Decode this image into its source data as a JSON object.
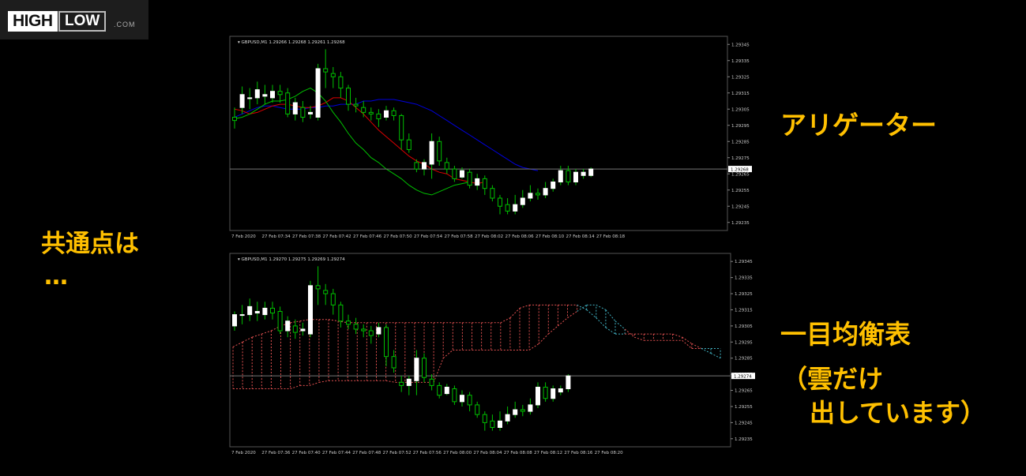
{
  "logo": {
    "high": "HIGH",
    "low": "LOW",
    "com": ".COM"
  },
  "annotations": {
    "common": "共通点は",
    "ellipsis": "…",
    "alligator": "アリゲーター",
    "ichimoku": "一目均衡表",
    "paren_line1": "（雲だけ",
    "paren_line2": "出しています）"
  },
  "colors": {
    "accent": "#ffc000",
    "bull": "#ffffff",
    "bear_border": "#00c000",
    "jaw": "#0000dd",
    "teeth": "#dd0000",
    "lips": "#00c000",
    "cloud_up": "#e05050",
    "cloud_down": "#40b0c0"
  },
  "chart_data": [
    {
      "type": "candlestick",
      "title": "GBPUSD,M1  1.29266 1.29268 1.29261 1.29268",
      "indicator": "Alligator",
      "ylim": [
        1.2923,
        1.2935
      ],
      "yticks": [
        "1.29345",
        "1.29335",
        "1.29325",
        "1.29315",
        "1.29305",
        "1.29295",
        "1.29285",
        "1.29275",
        "1.29265",
        "1.29255",
        "1.29245",
        "1.29235"
      ],
      "current_price": "1.29268",
      "xticks": [
        "7 Feb 2020",
        "27 Feb 07:34",
        "27 Feb 07:38",
        "27 Feb 07:42",
        "27 Feb 07:46",
        "27 Feb 07:50",
        "27 Feb 07:54",
        "27 Feb 07:58",
        "27 Feb 08:02",
        "27 Feb 08:06",
        "27 Feb 08:10",
        "27 Feb 08:14",
        "27 Feb 08:18"
      ],
      "candles": [
        [
          1.293,
          1.29298,
          1.29306,
          1.29293
        ],
        [
          1.29306,
          1.29314,
          1.29319,
          1.29302
        ],
        [
          1.29312,
          1.29312,
          1.29318,
          1.29305
        ],
        [
          1.29312,
          1.29317,
          1.29322,
          1.29308
        ],
        [
          1.29313,
          1.29314,
          1.2932,
          1.29308
        ],
        [
          1.29312,
          1.29316,
          1.2932,
          1.29309
        ],
        [
          1.29316,
          1.29314,
          1.2932,
          1.29309
        ],
        [
          1.29315,
          1.29302,
          1.29318,
          1.293
        ],
        [
          1.29302,
          1.29309,
          1.29312,
          1.29298
        ],
        [
          1.29306,
          1.293,
          1.2931,
          1.29297
        ],
        [
          1.29302,
          1.29303,
          1.29307,
          1.29299
        ],
        [
          1.293,
          1.2933,
          1.29333,
          1.29298
        ],
        [
          1.2933,
          1.29328,
          1.29342,
          1.29318
        ],
        [
          1.29327,
          1.29325,
          1.29331,
          1.29318
        ],
        [
          1.29325,
          1.29318,
          1.29328,
          1.29312
        ],
        [
          1.29318,
          1.29308,
          1.2932,
          1.29304
        ],
        [
          1.29308,
          1.29307,
          1.29312,
          1.29303
        ],
        [
          1.29306,
          1.29303,
          1.2931,
          1.293
        ],
        [
          1.29303,
          1.29302,
          1.29306,
          1.29298
        ],
        [
          1.29302,
          1.29299,
          1.29305,
          1.29294
        ],
        [
          1.293,
          1.29304,
          1.29307,
          1.29298
        ],
        [
          1.29304,
          1.29301,
          1.29306,
          1.29298
        ],
        [
          1.29301,
          1.29286,
          1.29302,
          1.2928
        ],
        [
          1.29286,
          1.2928,
          1.2929,
          1.29278
        ],
        [
          1.29272,
          1.29268,
          1.29274,
          1.29266
        ],
        [
          1.29268,
          1.29272,
          1.29274,
          1.29264
        ],
        [
          1.29271,
          1.29285,
          1.2929,
          1.29262
        ],
        [
          1.29285,
          1.29273,
          1.29288,
          1.2927
        ],
        [
          1.29272,
          1.29268,
          1.29275,
          1.29265
        ],
        [
          1.29268,
          1.29262,
          1.2927,
          1.2926
        ],
        [
          1.29263,
          1.29267,
          1.29269,
          1.29262
        ],
        [
          1.29266,
          1.29258,
          1.29268,
          1.29256
        ],
        [
          1.29258,
          1.29262,
          1.29265,
          1.29255
        ],
        [
          1.29262,
          1.29256,
          1.29264,
          1.29252
        ],
        [
          1.29256,
          1.2925,
          1.29258,
          1.29248
        ],
        [
          1.2925,
          1.29245,
          1.29252,
          1.2924
        ],
        [
          1.29246,
          1.29242,
          1.2925,
          1.2924
        ],
        [
          1.29242,
          1.29246,
          1.29252,
          1.2924
        ],
        [
          1.29246,
          1.2925,
          1.29255,
          1.29244
        ],
        [
          1.2925,
          1.29253,
          1.29258,
          1.29248
        ],
        [
          1.29253,
          1.29252,
          1.29256,
          1.29249
        ],
        [
          1.29252,
          1.29256,
          1.2926,
          1.2925
        ],
        [
          1.29256,
          1.2926,
          1.29262,
          1.29254
        ],
        [
          1.2926,
          1.29267,
          1.2927,
          1.29258
        ],
        [
          1.29267,
          1.2926,
          1.2927,
          1.29258
        ],
        [
          1.2926,
          1.29266,
          1.29268,
          1.29258
        ],
        [
          1.29264,
          1.29266,
          1.29268,
          1.29262
        ],
        [
          1.29264,
          1.29268,
          1.29269,
          1.29263
        ]
      ],
      "series": [
        {
          "name": "jaw",
          "values": [
            1.293,
            1.29302,
            1.29304,
            1.29306,
            1.29307,
            1.29307,
            1.29306,
            1.29305,
            1.29305,
            1.29305,
            1.29306,
            1.29306,
            1.29307,
            1.29307,
            1.29308,
            1.29308,
            1.29308,
            1.2931,
            1.2931,
            1.29311,
            1.29311,
            1.29311,
            1.2931,
            1.29309,
            1.29308,
            1.29306,
            1.29304,
            1.29301,
            1.29298,
            1.29295,
            1.29292,
            1.29289,
            1.29286,
            1.29283,
            1.2928,
            1.29277,
            1.29274,
            1.29271,
            1.29269,
            1.29268,
            1.29267
          ]
        },
        {
          "name": "teeth",
          "values": [
            1.29305,
            1.29304,
            1.29302,
            1.29303,
            1.29305,
            1.29307,
            1.29308,
            1.29308,
            1.29307,
            1.29306,
            1.29306,
            1.29307,
            1.29309,
            1.29312,
            1.29312,
            1.2931,
            1.29306,
            1.29302,
            1.29297,
            1.29292,
            1.29288,
            1.29284,
            1.2928,
            1.29276,
            1.29273,
            1.29271,
            1.29268,
            1.29266,
            1.29265,
            1.29262,
            1.29261,
            1.2926,
            1.29259,
            1.2926
          ]
        },
        {
          "name": "lips",
          "values": [
            1.29299,
            1.293,
            1.29302,
            1.29305,
            1.29308,
            1.2931,
            1.2931,
            1.29311,
            1.29313,
            1.29316,
            1.29318,
            1.29315,
            1.2931,
            1.29303,
            1.29297,
            1.2929,
            1.29284,
            1.2928,
            1.29275,
            1.29272,
            1.29268,
            1.29265,
            1.29262,
            1.29258,
            1.29255,
            1.29253,
            1.29252,
            1.29254,
            1.29256,
            1.29258,
            1.29259,
            1.2926
          ]
        }
      ]
    },
    {
      "type": "candlestick",
      "title": "GBPUSD,M1  1.29270 1.29275 1.29269 1.29274",
      "indicator": "Ichimoku Kumo",
      "ylim": [
        1.2923,
        1.2935
      ],
      "yticks": [
        "1.29345",
        "1.29335",
        "1.29325",
        "1.29315",
        "1.29305",
        "1.29295",
        "1.29285",
        "1.29275",
        "1.29265",
        "1.29255",
        "1.29245",
        "1.29235"
      ],
      "current_price": "1.29274",
      "xticks": [
        "7 Feb 2020",
        "27 Feb 07:36",
        "27 Feb 07:40",
        "27 Feb 07:44",
        "27 Feb 07:48",
        "27 Feb 07:52",
        "27 Feb 07:56",
        "27 Feb 08:00",
        "27 Feb 08:04",
        "27 Feb 08:08",
        "27 Feb 08:12",
        "27 Feb 08:16",
        "27 Feb 08:20"
      ],
      "candles": [
        [
          1.29305,
          1.29312,
          1.29314,
          1.29302
        ],
        [
          1.29312,
          1.29312,
          1.29318,
          1.29306
        ],
        [
          1.29312,
          1.29317,
          1.29322,
          1.29308
        ],
        [
          1.29313,
          1.29314,
          1.2932,
          1.29308
        ],
        [
          1.29312,
          1.29316,
          1.2932,
          1.29309
        ],
        [
          1.29316,
          1.29313,
          1.2932,
          1.29309
        ],
        [
          1.29314,
          1.29302,
          1.29317,
          1.293
        ],
        [
          1.29302,
          1.29308,
          1.29311,
          1.29298
        ],
        [
          1.29305,
          1.29301,
          1.29309,
          1.29297
        ],
        [
          1.29302,
          1.29303,
          1.29307,
          1.29299
        ],
        [
          1.293,
          1.2933,
          1.29333,
          1.29298
        ],
        [
          1.2933,
          1.29328,
          1.29342,
          1.29318
        ],
        [
          1.29327,
          1.29325,
          1.29331,
          1.29318
        ],
        [
          1.29325,
          1.29318,
          1.29328,
          1.29312
        ],
        [
          1.29318,
          1.29308,
          1.2932,
          1.29304
        ],
        [
          1.29308,
          1.29306,
          1.29312,
          1.29303
        ],
        [
          1.29306,
          1.29303,
          1.2931,
          1.293
        ],
        [
          1.29303,
          1.29302,
          1.29306,
          1.29298
        ],
        [
          1.29302,
          1.29299,
          1.29305,
          1.29294
        ],
        [
          1.293,
          1.29304,
          1.29307,
          1.29298
        ],
        [
          1.29304,
          1.29286,
          1.29306,
          1.2928
        ],
        [
          1.29286,
          1.29279,
          1.2929,
          1.29276
        ],
        [
          1.2927,
          1.29268,
          1.29274,
          1.29264
        ],
        [
          1.29268,
          1.29272,
          1.29274,
          1.29262
        ],
        [
          1.29271,
          1.29285,
          1.2929,
          1.29262
        ],
        [
          1.29285,
          1.29273,
          1.29288,
          1.2927
        ],
        [
          1.29272,
          1.29268,
          1.29275,
          1.29265
        ],
        [
          1.29268,
          1.29262,
          1.2927,
          1.2926
        ],
        [
          1.29263,
          1.29267,
          1.29269,
          1.29262
        ],
        [
          1.29266,
          1.29258,
          1.29268,
          1.29256
        ],
        [
          1.29258,
          1.29262,
          1.29265,
          1.29255
        ],
        [
          1.29262,
          1.29256,
          1.29264,
          1.29252
        ],
        [
          1.29256,
          1.2925,
          1.29258,
          1.29248
        ],
        [
          1.2925,
          1.29245,
          1.29252,
          1.2924
        ],
        [
          1.29246,
          1.29242,
          1.2925,
          1.2924
        ],
        [
          1.29242,
          1.29246,
          1.29252,
          1.2924
        ],
        [
          1.29246,
          1.2925,
          1.29255,
          1.29244
        ],
        [
          1.2925,
          1.29253,
          1.29258,
          1.29248
        ],
        [
          1.29253,
          1.29252,
          1.29256,
          1.29249
        ],
        [
          1.29252,
          1.29256,
          1.2926,
          1.2925
        ],
        [
          1.29256,
          1.29267,
          1.2927,
          1.29254
        ],
        [
          1.29267,
          1.2926,
          1.2927,
          1.29258
        ],
        [
          1.2926,
          1.29266,
          1.29268,
          1.29258
        ],
        [
          1.29264,
          1.29266,
          1.29268,
          1.29262
        ],
        [
          1.29266,
          1.29274,
          1.29275,
          1.29264
        ]
      ],
      "cloud": {
        "span_a": [
          1.29292,
          1.29295,
          1.29298,
          1.293,
          1.29302,
          1.29305,
          1.29307,
          1.29308,
          1.29309,
          1.29309,
          1.29309,
          1.29308,
          1.29307,
          1.29307,
          1.29307,
          1.29307,
          1.29307,
          1.29307,
          1.29307,
          1.29307,
          1.29307,
          1.29307,
          1.29307,
          1.29307,
          1.29307,
          1.29307,
          1.29307,
          1.29307,
          1.29307,
          1.2931,
          1.29316,
          1.29318,
          1.29318,
          1.29318,
          1.29318,
          1.29318,
          1.29318,
          1.29315,
          1.2931,
          1.29304,
          1.293,
          1.293,
          1.293,
          1.293,
          1.293,
          1.293,
          1.293,
          1.29298,
          1.29294,
          1.29291,
          1.29288,
          1.29285
        ],
        "span_b": [
          1.29266,
          1.29266,
          1.29266,
          1.29266,
          1.29266,
          1.29266,
          1.29266,
          1.29268,
          1.29268,
          1.2927,
          1.29271,
          1.29271,
          1.29271,
          1.29271,
          1.29271,
          1.29271,
          1.29271,
          1.2927,
          1.2927,
          1.2927,
          1.2927,
          1.2927,
          1.29285,
          1.2929,
          1.2929,
          1.2929,
          1.2929,
          1.2929,
          1.2929,
          1.2929,
          1.2929,
          1.2929,
          1.29294,
          1.293,
          1.29305,
          1.2931,
          1.29314,
          1.29318,
          1.29318,
          1.29315,
          1.29308,
          1.29303,
          1.29298,
          1.29296,
          1.29296,
          1.29296,
          1.29296,
          1.29296,
          1.29291,
          1.29291,
          1.29291,
          1.29291
        ]
      }
    }
  ]
}
